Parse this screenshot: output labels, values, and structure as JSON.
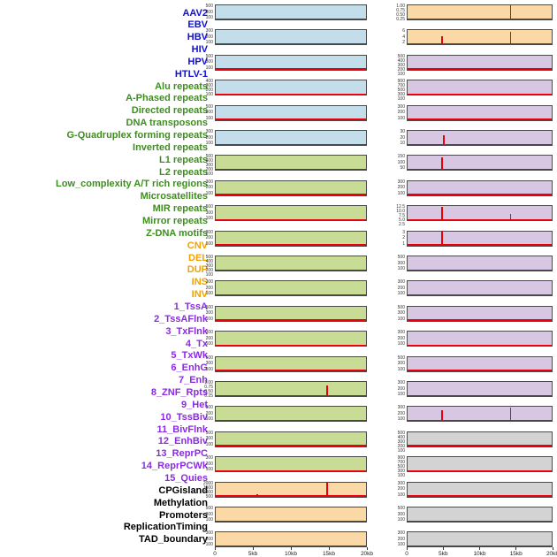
{
  "figure": {
    "x_axis": {
      "ticks": [
        "0",
        "5kb",
        "10kb",
        "15kb",
        "20kb"
      ]
    },
    "colors": {
      "label_virus": "#1010d0",
      "label_repeat": "#3e8d1f",
      "label_sv": "#f0a202",
      "label_chromhmm": "#8a2be2",
      "label_other": "#000000",
      "panel_virus": "#c3ddeb",
      "panel_repeat": "#c8dc96",
      "panel_sv": "#fbd9a6",
      "panel_chromhmm": "#d7c7e3",
      "panel_other": "#d3d3d3",
      "line": "#e8000b",
      "tick_text": "#333333",
      "border": "#4a4a4a"
    },
    "labels": [
      {
        "text": "AAV2",
        "group": "virus"
      },
      {
        "text": "EBV",
        "group": "virus"
      },
      {
        "text": "HBV",
        "group": "virus"
      },
      {
        "text": "HIV",
        "group": "virus"
      },
      {
        "text": "HPV",
        "group": "virus"
      },
      {
        "text": "HTLV-1",
        "group": "virus"
      },
      {
        "text": "Alu repeats",
        "group": "repeat"
      },
      {
        "text": "A-Phased repeats",
        "group": "repeat"
      },
      {
        "text": "Directed repeats",
        "group": "repeat"
      },
      {
        "text": "DNA transposons",
        "group": "repeat"
      },
      {
        "text": "G-Quadruplex forming repeats",
        "group": "repeat"
      },
      {
        "text": "Inverted repeats",
        "group": "repeat"
      },
      {
        "text": "L1 repeats",
        "group": "repeat"
      },
      {
        "text": "L2 repeats",
        "group": "repeat"
      },
      {
        "text": "Low_complexity A/T rich regions",
        "group": "repeat"
      },
      {
        "text": "Microsatellites",
        "group": "repeat"
      },
      {
        "text": "MIR repeats",
        "group": "repeat"
      },
      {
        "text": "Mirror repeats",
        "group": "repeat"
      },
      {
        "text": "Z-DNA motifs",
        "group": "repeat"
      },
      {
        "text": "CNV",
        "group": "sv"
      },
      {
        "text": "DEL",
        "group": "sv"
      },
      {
        "text": "DUP",
        "group": "sv"
      },
      {
        "text": "INS",
        "group": "sv"
      },
      {
        "text": "INV",
        "group": "sv"
      },
      {
        "text": "1_TssA",
        "group": "chromhmm"
      },
      {
        "text": "2_TssAFlnk",
        "group": "chromhmm"
      },
      {
        "text": "3_TxFlnk",
        "group": "chromhmm"
      },
      {
        "text": "4_Tx",
        "group": "chromhmm"
      },
      {
        "text": "5_TxWk",
        "group": "chromhmm"
      },
      {
        "text": "6_EnhG",
        "group": "chromhmm"
      },
      {
        "text": "7_Enh",
        "group": "chromhmm"
      },
      {
        "text": "8_ZNF_Rpts",
        "group": "chromhmm"
      },
      {
        "text": "9_Het",
        "group": "chromhmm"
      },
      {
        "text": "10_TssBiv",
        "group": "chromhmm"
      },
      {
        "text": "11_BivFlnk",
        "group": "chromhmm"
      },
      {
        "text": "12_EnhBiv",
        "group": "chromhmm"
      },
      {
        "text": "13_ReprPC",
        "group": "chromhmm"
      },
      {
        "text": "14_ReprPCWk",
        "group": "chromhmm"
      },
      {
        "text": "15_Quies",
        "group": "chromhmm"
      },
      {
        "text": "CPGisland",
        "group": "other"
      },
      {
        "text": "Methylation",
        "group": "other"
      },
      {
        "text": "Promoters",
        "group": "other"
      },
      {
        "text": "ReplicationTiming",
        "group": "other"
      },
      {
        "text": "TAD_boundary",
        "group": "other"
      }
    ],
    "chart_data": [
      {
        "type": "line",
        "feature": "AAV2",
        "group": "virus",
        "column": "left",
        "row": 0,
        "x_range_kb": [
          0,
          20
        ],
        "yticks": [
          "500",
          "300",
          "100"
        ],
        "ymax": 500,
        "peaks": []
      },
      {
        "type": "line",
        "feature": "EBV",
        "group": "virus",
        "column": "left",
        "row": 1,
        "x_range_kb": [
          0,
          20
        ],
        "yticks": [
          "300",
          "200",
          "100"
        ],
        "ymax": 300,
        "peaks": []
      },
      {
        "type": "line",
        "feature": "HBV",
        "group": "virus",
        "column": "left",
        "row": 2,
        "x_range_kb": [
          0,
          20
        ],
        "yticks": [
          "500",
          "300",
          "100"
        ],
        "ymax": 500,
        "peaks": []
      },
      {
        "type": "line",
        "feature": "HIV",
        "group": "virus",
        "column": "left",
        "row": 3,
        "x_range_kb": [
          0,
          20
        ],
        "yticks": [
          "400",
          "300",
          "200",
          "100"
        ],
        "ymax": 400,
        "peaks": []
      },
      {
        "type": "line",
        "feature": "HPV",
        "group": "virus",
        "column": "left",
        "row": 4,
        "x_range_kb": [
          0,
          20
        ],
        "yticks": [
          "500",
          "300",
          "100"
        ],
        "ymax": 500,
        "peaks": []
      },
      {
        "type": "line",
        "feature": "HTLV-1",
        "group": "virus",
        "column": "left",
        "row": 5,
        "x_range_kb": [
          0,
          20
        ],
        "yticks": [
          "300",
          "200",
          "100"
        ],
        "ymax": 300,
        "peaks": []
      },
      {
        "type": "line",
        "feature": "Alu repeats",
        "group": "repeat",
        "column": "left",
        "row": 6,
        "x_range_kb": [
          0,
          20
        ],
        "yticks": [
          "500",
          "400",
          "300",
          "200",
          "100"
        ],
        "ymax": 500,
        "peaks": []
      },
      {
        "type": "line",
        "feature": "A-Phased repeats",
        "group": "repeat",
        "column": "left",
        "row": 7,
        "x_range_kb": [
          0,
          20
        ],
        "yticks": [
          "300",
          "200",
          "100"
        ],
        "ymax": 300,
        "peaks": []
      },
      {
        "type": "line",
        "feature": "Directed repeats",
        "group": "repeat",
        "column": "left",
        "row": 8,
        "x_range_kb": [
          0,
          20
        ],
        "yticks": [
          "500",
          "300",
          "100"
        ],
        "ymax": 500,
        "peaks": []
      },
      {
        "type": "line",
        "feature": "DNA transposons",
        "group": "repeat",
        "column": "left",
        "row": 9,
        "x_range_kb": [
          0,
          20
        ],
        "yticks": [
          "300",
          "200",
          "100"
        ],
        "ymax": 300,
        "peaks": []
      },
      {
        "type": "line",
        "feature": "G-Quadruplex forming repeats",
        "group": "repeat",
        "column": "left",
        "row": 10,
        "x_range_kb": [
          0,
          20
        ],
        "yticks": [
          "500",
          "400",
          "300",
          "200",
          "100"
        ],
        "ymax": 500,
        "peaks": []
      },
      {
        "type": "line",
        "feature": "Inverted repeats",
        "group": "repeat",
        "column": "left",
        "row": 11,
        "x_range_kb": [
          0,
          20
        ],
        "yticks": [
          "300",
          "200",
          "100"
        ],
        "ymax": 300,
        "peaks": []
      },
      {
        "type": "line",
        "feature": "L1 repeats",
        "group": "repeat",
        "column": "left",
        "row": 12,
        "x_range_kb": [
          0,
          20
        ],
        "yticks": [
          "500",
          "300",
          "100"
        ],
        "ymax": 500,
        "peaks": []
      },
      {
        "type": "line",
        "feature": "L2 repeats",
        "group": "repeat",
        "column": "left",
        "row": 13,
        "x_range_kb": [
          0,
          20
        ],
        "yticks": [
          "300",
          "200",
          "100"
        ],
        "ymax": 300,
        "peaks": []
      },
      {
        "type": "line",
        "feature": "Low_complexity A/T rich regions",
        "group": "repeat",
        "column": "left",
        "row": 14,
        "x_range_kb": [
          0,
          20
        ],
        "yticks": [
          "500",
          "300",
          "100"
        ],
        "ymax": 500,
        "peaks": []
      },
      {
        "type": "line",
        "feature": "Microsatellites",
        "group": "repeat",
        "column": "left",
        "row": 15,
        "x_range_kb": [
          0,
          20
        ],
        "yticks": [
          "1.00",
          "0.75",
          "0.50",
          "0.25"
        ],
        "ymax": 1.0,
        "peaks": [
          {
            "x_kb": 14.8,
            "value": 0.78
          }
        ]
      },
      {
        "type": "line",
        "feature": "MIR repeats",
        "group": "repeat",
        "column": "left",
        "row": 16,
        "x_range_kb": [
          0,
          20
        ],
        "yticks": [
          "300",
          "200",
          "100"
        ],
        "ymax": 300,
        "peaks": []
      },
      {
        "type": "line",
        "feature": "Mirror repeats",
        "group": "repeat",
        "column": "left",
        "row": 17,
        "x_range_kb": [
          0,
          20
        ],
        "yticks": [
          "500",
          "300",
          "100"
        ],
        "ymax": 500,
        "peaks": []
      },
      {
        "type": "line",
        "feature": "Z-DNA motifs",
        "group": "repeat",
        "column": "left",
        "row": 18,
        "x_range_kb": [
          0,
          20
        ],
        "yticks": [
          "300",
          "200",
          "100"
        ],
        "ymax": 300,
        "peaks": []
      },
      {
        "type": "line",
        "feature": "CNV",
        "group": "sv",
        "column": "left",
        "row": 19,
        "x_range_kb": [
          0,
          20
        ],
        "yticks": [
          "2000",
          "1500",
          "1000",
          "500"
        ],
        "ymax": 2000,
        "peaks": [
          {
            "x_kb": 5.5,
            "value": 300
          },
          {
            "x_kb": 14.8,
            "value": 1900
          }
        ]
      },
      {
        "type": "line",
        "feature": "DEL",
        "group": "sv",
        "column": "left",
        "row": 20,
        "x_range_kb": [
          0,
          20
        ],
        "yticks": [
          "500",
          "300",
          "100"
        ],
        "ymax": 500,
        "peaks": []
      },
      {
        "type": "line",
        "feature": "DUP",
        "group": "sv",
        "column": "left",
        "row": 21,
        "x_range_kb": [
          0,
          20
        ],
        "yticks": [
          "300",
          "200",
          "100"
        ],
        "ymax": 300,
        "peaks": []
      },
      {
        "type": "line",
        "feature": "INS",
        "group": "sv",
        "column": "right",
        "row": 0,
        "x_range_kb": [
          0,
          20
        ],
        "yticks": [
          "1.00",
          "0.75",
          "0.50",
          "0.25"
        ],
        "ymax": 1.0,
        "peaks": [
          {
            "x_kb": 14.3,
            "value": 0.97
          }
        ]
      },
      {
        "type": "line",
        "feature": "INV",
        "group": "sv",
        "column": "right",
        "row": 1,
        "x_range_kb": [
          0,
          20
        ],
        "yticks": [
          "6",
          "4",
          "2"
        ],
        "ymax": 6,
        "peaks": [
          {
            "x_kb": 4.8,
            "value": 3.4
          },
          {
            "x_kb": 14.3,
            "value": 5.3
          }
        ]
      },
      {
        "type": "line",
        "feature": "1_TssA",
        "group": "chromhmm",
        "column": "right",
        "row": 2,
        "x_range_kb": [
          0,
          20
        ],
        "yticks": [
          "500",
          "400",
          "300",
          "200",
          "100"
        ],
        "ymax": 500,
        "peaks": []
      },
      {
        "type": "line",
        "feature": "2_TssAFlnk",
        "group": "chromhmm",
        "column": "right",
        "row": 3,
        "x_range_kb": [
          0,
          20
        ],
        "yticks": [
          "900",
          "700",
          "500",
          "300",
          "100"
        ],
        "ymax": 900,
        "peaks": []
      },
      {
        "type": "line",
        "feature": "3_TxFlnk",
        "group": "chromhmm",
        "column": "right",
        "row": 4,
        "x_range_kb": [
          0,
          20
        ],
        "yticks": [
          "300",
          "200",
          "100"
        ],
        "ymax": 300,
        "peaks": []
      },
      {
        "type": "line",
        "feature": "4_Tx",
        "group": "chromhmm",
        "column": "right",
        "row": 5,
        "x_range_kb": [
          0,
          20
        ],
        "yticks": [
          "30",
          "20",
          "10"
        ],
        "ymax": 30,
        "peaks": [
          {
            "x_kb": 5.0,
            "value": 20
          }
        ]
      },
      {
        "type": "line",
        "feature": "5_TxWk",
        "group": "chromhmm",
        "column": "right",
        "row": 6,
        "x_range_kb": [
          0,
          20
        ],
        "yticks": [
          "150",
          "100",
          "50"
        ],
        "ymax": 150,
        "peaks": [
          {
            "x_kb": 4.8,
            "value": 135
          }
        ]
      },
      {
        "type": "line",
        "feature": "6_EnhG",
        "group": "chromhmm",
        "column": "right",
        "row": 7,
        "x_range_kb": [
          0,
          20
        ],
        "yticks": [
          "300",
          "200",
          "100"
        ],
        "ymax": 300,
        "peaks": []
      },
      {
        "type": "line",
        "feature": "7_Enh",
        "group": "chromhmm",
        "column": "right",
        "row": 8,
        "x_range_kb": [
          0,
          20
        ],
        "yticks": [
          "12.5",
          "10.0",
          "7.5",
          "5.0",
          "2.5"
        ],
        "ymax": 12.5,
        "peaks": [
          {
            "x_kb": 4.8,
            "value": 11.5
          },
          {
            "x_kb": 14.3,
            "value": 5.5
          }
        ]
      },
      {
        "type": "line",
        "feature": "8_ZNF_Rpts",
        "group": "chromhmm",
        "column": "right",
        "row": 9,
        "x_range_kb": [
          0,
          20
        ],
        "yticks": [
          "3",
          "2",
          "1"
        ],
        "ymax": 3,
        "peaks": [
          {
            "x_kb": 4.8,
            "value": 2.85
          }
        ]
      },
      {
        "type": "line",
        "feature": "9_Het",
        "group": "chromhmm",
        "column": "right",
        "row": 10,
        "x_range_kb": [
          0,
          20
        ],
        "yticks": [
          "500",
          "300",
          "100"
        ],
        "ymax": 500,
        "peaks": []
      },
      {
        "type": "line",
        "feature": "10_TssBiv",
        "group": "chromhmm",
        "column": "right",
        "row": 11,
        "x_range_kb": [
          0,
          20
        ],
        "yticks": [
          "300",
          "200",
          "100"
        ],
        "ymax": 300,
        "peaks": []
      },
      {
        "type": "line",
        "feature": "11_BivFlnk",
        "group": "chromhmm",
        "column": "right",
        "row": 12,
        "x_range_kb": [
          0,
          20
        ],
        "yticks": [
          "500",
          "300",
          "100"
        ],
        "ymax": 500,
        "peaks": []
      },
      {
        "type": "line",
        "feature": "12_EnhBiv",
        "group": "chromhmm",
        "column": "right",
        "row": 13,
        "x_range_kb": [
          0,
          20
        ],
        "yticks": [
          "300",
          "200",
          "100"
        ],
        "ymax": 300,
        "peaks": []
      },
      {
        "type": "line",
        "feature": "13_ReprPC",
        "group": "chromhmm",
        "column": "right",
        "row": 14,
        "x_range_kb": [
          0,
          20
        ],
        "yticks": [
          "500",
          "300",
          "100"
        ],
        "ymax": 500,
        "peaks": []
      },
      {
        "type": "line",
        "feature": "14_ReprPCWk",
        "group": "chromhmm",
        "column": "right",
        "row": 15,
        "x_range_kb": [
          0,
          20
        ],
        "yticks": [
          "300",
          "200",
          "100"
        ],
        "ymax": 300,
        "peaks": []
      },
      {
        "type": "line",
        "feature": "15_Quies",
        "group": "chromhmm",
        "column": "right",
        "row": 16,
        "x_range_kb": [
          0,
          20
        ],
        "yticks": [
          "300",
          "200",
          "100"
        ],
        "ymax": 300,
        "peaks": [
          {
            "x_kb": 4.8,
            "value": 240
          },
          {
            "x_kb": 14.3,
            "value": 285
          }
        ]
      },
      {
        "type": "line",
        "feature": "CPGisland",
        "group": "other",
        "column": "right",
        "row": 17,
        "x_range_kb": [
          0,
          20
        ],
        "yticks": [
          "500",
          "400",
          "300",
          "200",
          "100"
        ],
        "ymax": 500,
        "peaks": []
      },
      {
        "type": "line",
        "feature": "Methylation",
        "group": "other",
        "column": "right",
        "row": 18,
        "x_range_kb": [
          0,
          20
        ],
        "yticks": [
          "900",
          "700",
          "500",
          "300",
          "100"
        ],
        "ymax": 900,
        "peaks": []
      },
      {
        "type": "line",
        "feature": "Promoters",
        "group": "other",
        "column": "right",
        "row": 19,
        "x_range_kb": [
          0,
          20
        ],
        "yticks": [
          "300",
          "200",
          "100"
        ],
        "ymax": 300,
        "peaks": []
      },
      {
        "type": "line",
        "feature": "ReplicationTiming",
        "group": "other",
        "column": "right",
        "row": 20,
        "x_range_kb": [
          0,
          20
        ],
        "yticks": [
          "500",
          "300",
          "100"
        ],
        "ymax": 500,
        "peaks": []
      },
      {
        "type": "line",
        "feature": "TAD_boundary",
        "group": "other",
        "column": "right",
        "row": 21,
        "x_range_kb": [
          0,
          20
        ],
        "yticks": [
          "300",
          "200",
          "100"
        ],
        "ymax": 300,
        "peaks": []
      }
    ]
  }
}
